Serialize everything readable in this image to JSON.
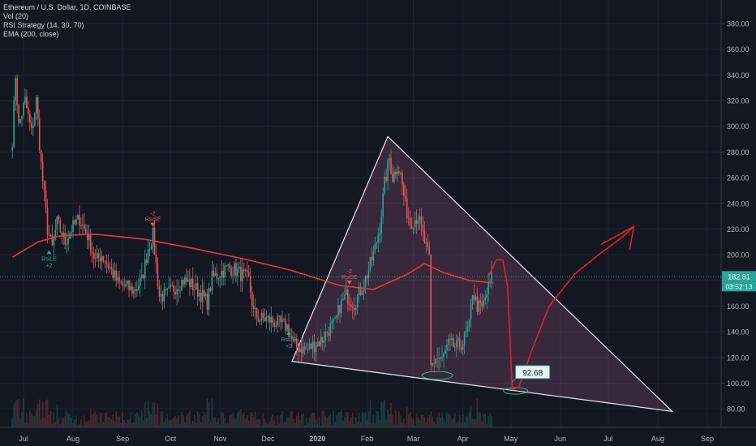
{
  "legend": {
    "symbol": "Ethereum / U.S. Dollar, 1D, COINBASE",
    "vol": "Vol (20)",
    "rsi": "RSI Strategy (14, 30, 70)",
    "ema": "EMA (200, close)"
  },
  "chart_data": {
    "type": "candlestick",
    "y_ticks": [
      80,
      100,
      120,
      140,
      160,
      180,
      200,
      220,
      240,
      260,
      280,
      300,
      320,
      340,
      360,
      380
    ],
    "y_tick_labels": [
      "80.00",
      "100.00",
      "120.00",
      "140.00",
      "160.00",
      "180.00",
      "200.00",
      "220.00",
      "240.00",
      "260.00",
      "280.00",
      "300.00",
      "320.00",
      "340.00",
      "360.00",
      "380.00"
    ],
    "ylim": [
      72,
      392
    ],
    "x_labels": [
      "Jul",
      "Aug",
      "Sep",
      "Oct",
      "Nov",
      "Dec",
      "2020",
      "Feb",
      "Mar",
      "Apr",
      "May",
      "Jun",
      "Jul",
      "Aug",
      "Sep"
    ],
    "x_dates": [
      "2019-07-01",
      "2019-08-01",
      "2019-09-01",
      "2019-10-01",
      "2019-11-01",
      "2019-12-01",
      "2020-01-01",
      "2020-02-01",
      "2020-03-01",
      "2020-04-01",
      "2020-05-01",
      "2020-06-01",
      "2020-07-01",
      "2020-08-01",
      "2020-09-01"
    ],
    "price_path": [
      [
        "2019-06-24",
        290
      ],
      [
        "2019-06-26",
        340
      ],
      [
        "2019-06-28",
        300
      ],
      [
        "2019-07-02",
        320
      ],
      [
        "2019-07-06",
        295
      ],
      [
        "2019-07-09",
        320
      ],
      [
        "2019-07-12",
        270
      ],
      [
        "2019-07-16",
        220
      ],
      [
        "2019-07-19",
        205
      ],
      [
        "2019-07-22",
        225
      ],
      [
        "2019-07-27",
        210
      ],
      [
        "2019-07-31",
        220
      ],
      [
        "2019-08-05",
        228
      ],
      [
        "2019-08-10",
        215
      ],
      [
        "2019-08-15",
        195
      ],
      [
        "2019-08-19",
        200
      ],
      [
        "2019-08-24",
        190
      ],
      [
        "2019-08-29",
        178
      ],
      [
        "2019-09-03",
        175
      ],
      [
        "2019-09-08",
        172
      ],
      [
        "2019-09-13",
        180
      ],
      [
        "2019-09-17",
        205
      ],
      [
        "2019-09-20",
        215
      ],
      [
        "2019-09-24",
        168
      ],
      [
        "2019-09-28",
        168
      ],
      [
        "2019-10-04",
        175
      ],
      [
        "2019-10-09",
        180
      ],
      [
        "2019-10-13",
        178
      ],
      [
        "2019-10-18",
        172
      ],
      [
        "2019-10-24",
        163
      ],
      [
        "2019-10-27",
        182
      ],
      [
        "2019-10-31",
        185
      ],
      [
        "2019-11-06",
        190
      ],
      [
        "2019-11-11",
        188
      ],
      [
        "2019-11-15",
        184
      ],
      [
        "2019-11-19",
        180
      ],
      [
        "2019-11-22",
        155
      ],
      [
        "2019-11-26",
        150
      ],
      [
        "2019-11-30",
        150
      ],
      [
        "2019-12-04",
        148
      ],
      [
        "2019-12-09",
        146
      ],
      [
        "2019-12-13",
        144
      ],
      [
        "2019-12-17",
        130
      ],
      [
        "2019-12-20",
        128
      ],
      [
        "2019-12-25",
        126
      ],
      [
        "2019-12-30",
        130
      ],
      [
        "2020-01-04",
        134
      ],
      [
        "2020-01-08",
        142
      ],
      [
        "2020-01-12",
        146
      ],
      [
        "2020-01-15",
        160
      ],
      [
        "2020-01-19",
        168
      ],
      [
        "2020-01-24",
        162
      ],
      [
        "2020-01-29",
        175
      ],
      [
        "2020-02-02",
        188
      ],
      [
        "2020-02-06",
        205
      ],
      [
        "2020-02-09",
        222
      ],
      [
        "2020-02-12",
        255
      ],
      [
        "2020-02-15",
        275
      ],
      [
        "2020-02-17",
        260
      ],
      [
        "2020-02-20",
        270
      ],
      [
        "2020-02-22",
        262
      ],
      [
        "2020-02-25",
        238
      ],
      [
        "2020-02-28",
        225
      ],
      [
        "2020-03-04",
        230
      ],
      [
        "2020-03-08",
        210
      ],
      [
        "2020-03-11",
        196
      ],
      [
        "2020-03-12",
        112
      ],
      [
        "2020-03-15",
        120
      ],
      [
        "2020-03-19",
        118
      ],
      [
        "2020-03-23",
        130
      ],
      [
        "2020-03-28",
        128
      ],
      [
        "2020-04-01",
        132
      ],
      [
        "2020-04-05",
        144
      ],
      [
        "2020-04-07",
        172
      ],
      [
        "2020-04-10",
        160
      ],
      [
        "2020-04-13",
        158
      ],
      [
        "2020-04-16",
        170
      ],
      [
        "2020-04-19",
        182
      ]
    ],
    "ema_path": [
      [
        "2019-06-24",
        198
      ],
      [
        "2019-07-10",
        210
      ],
      [
        "2019-07-25",
        215
      ],
      [
        "2019-08-15",
        216
      ],
      [
        "2019-09-15",
        212
      ],
      [
        "2019-10-15",
        205
      ],
      [
        "2019-11-15",
        197
      ],
      [
        "2019-12-15",
        188
      ],
      [
        "2020-01-15",
        176
      ],
      [
        "2020-02-05",
        173
      ],
      [
        "2020-02-25",
        184
      ],
      [
        "2020-03-08",
        193
      ],
      [
        "2020-03-20",
        186
      ],
      [
        "2020-04-05",
        180
      ],
      [
        "2020-04-20",
        178
      ]
    ],
    "last_price": "182.81",
    "countdown": "03:52:13",
    "annotations": {
      "target_price": "92.68",
      "signals": [
        {
          "date": "2019-07-17",
          "price": 203,
          "label": "RsiLE",
          "count": "+2",
          "side": "long"
        },
        {
          "date": "2019-09-20",
          "price": 223,
          "label": "RsiSE",
          "count": "-2",
          "side": "short"
        },
        {
          "date": "2019-12-14",
          "price": 140,
          "label": "RsiLE",
          "count": "+2",
          "side": "long"
        },
        {
          "date": "2020-01-21",
          "price": 178,
          "label": "RsiSE",
          "count": "-2",
          "side": "short"
        }
      ],
      "triangle": [
        [
          "2019-12-16",
          117
        ],
        [
          "2020-02-14",
          292
        ],
        [
          "2020-08-10",
          78
        ]
      ],
      "projection_path": [
        [
          "2020-04-17",
          183
        ],
        [
          "2020-04-22",
          196
        ],
        [
          "2020-04-26",
          196
        ],
        [
          "2020-04-29",
          175
        ],
        [
          "2020-05-01",
          120
        ],
        [
          "2020-05-02",
          95
        ],
        [
          "2020-05-06",
          97
        ],
        [
          "2020-05-14",
          125
        ],
        [
          "2020-05-25",
          160
        ],
        [
          "2020-06-10",
          185
        ],
        [
          "2020-06-25",
          200
        ],
        [
          "2020-07-10",
          214
        ],
        [
          "2020-07-17",
          222
        ]
      ]
    }
  }
}
